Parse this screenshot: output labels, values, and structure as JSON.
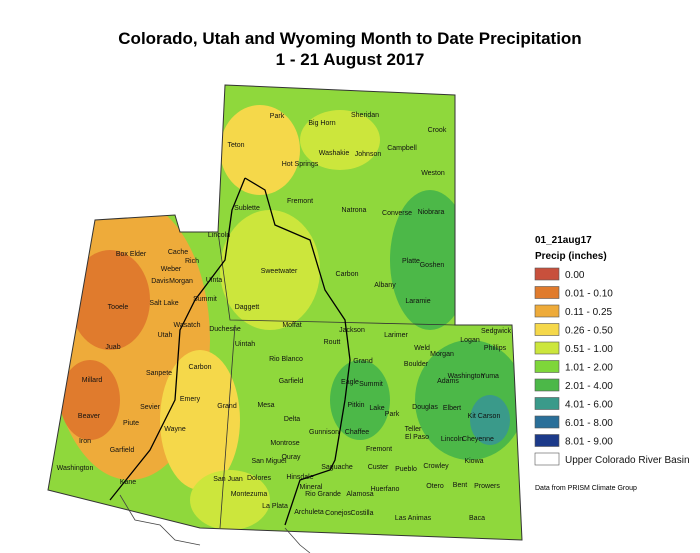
{
  "header": {
    "title": "Colorado, Utah and Wyoming Month to Date Precipitation",
    "subtitle": "1 - 21 August 2017"
  },
  "legend": {
    "title": "01_21aug17",
    "subtitle": "Precip (inches)",
    "items": [
      {
        "label": "0.00",
        "color": "#c8503c"
      },
      {
        "label": "0.01 - 0.10",
        "color": "#e07b2d"
      },
      {
        "label": "0.11 - 0.25",
        "color": "#eeab3a"
      },
      {
        "label": "0.26 - 0.50",
        "color": "#f5d84a"
      },
      {
        "label": "0.51 - 1.00",
        "color": "#cce63c"
      },
      {
        "label": "1.01 - 2.00",
        "color": "#7ed63a"
      },
      {
        "label": "2.01 - 4.00",
        "color": "#4cb848"
      },
      {
        "label": "4.01 - 6.00",
        "color": "#3a9a8a"
      },
      {
        "label": "6.01 - 8.00",
        "color": "#2a6f99"
      },
      {
        "label": "8.01 - 9.00",
        "color": "#1c3a8a"
      },
      {
        "label": "Upper Colorado River Basin",
        "color": "#ffffff"
      }
    ],
    "source": "Data from PRISM Climate Group"
  },
  "counties": [
    "Park",
    "Big Horn",
    "Sheridan",
    "Crook",
    "Teton",
    "Washakie",
    "Johnson",
    "Campbell",
    "Hot Springs",
    "Weston",
    "Sublette",
    "Fremont",
    "Natrona",
    "Converse",
    "Niobrara",
    "Lincoln",
    "Sweetwater",
    "Carbon",
    "Albany",
    "Platte",
    "Goshen",
    "Laramie",
    "Box Elder",
    "Cache",
    "Rich",
    "Weber",
    "Davis",
    "Morgan",
    "Uinta",
    "Salt Lake",
    "Summit",
    "Daggett",
    "Tooele",
    "Wasatch",
    "Duchesne",
    "Utah",
    "Uintah",
    "Juab",
    "Moffat",
    "Routt",
    "Jackson",
    "Larimer",
    "Logan",
    "Sedgwick",
    "Phillips",
    "Weld",
    "Morgan",
    "Rio Blanco",
    "Grand",
    "Boulder",
    "Carbon",
    "Sanpete",
    "Millard",
    "Garfield",
    "Eagle",
    "Summit",
    "Emery",
    "Sevier",
    "Mesa",
    "Pitkin",
    "Lake",
    "Park",
    "Douglas",
    "Elbert",
    "Adams",
    "Washington",
    "Yuma",
    "Kit Carson",
    "Beaver",
    "Piute",
    "Wayne",
    "Grand",
    "Delta",
    "Gunnison",
    "Chaffee",
    "Teller",
    "El Paso",
    "Lincoln",
    "Cheyenne",
    "Iron",
    "Montrose",
    "Ouray",
    "Garfield",
    "Washington",
    "Kane",
    "San Miguel",
    "Saguache",
    "Custer",
    "Pueblo",
    "Crowley",
    "Kiowa",
    "Dolores",
    "San Juan",
    "Hinsdale",
    "Mineral",
    "Fremont",
    "Otero",
    "Bent",
    "Prowers",
    "Montezuma",
    "Rio Grande",
    "Alamosa",
    "Huerfano",
    "La Plata",
    "Archuleta",
    "Conejos",
    "Costilla",
    "Las Animas",
    "Baca"
  ]
}
